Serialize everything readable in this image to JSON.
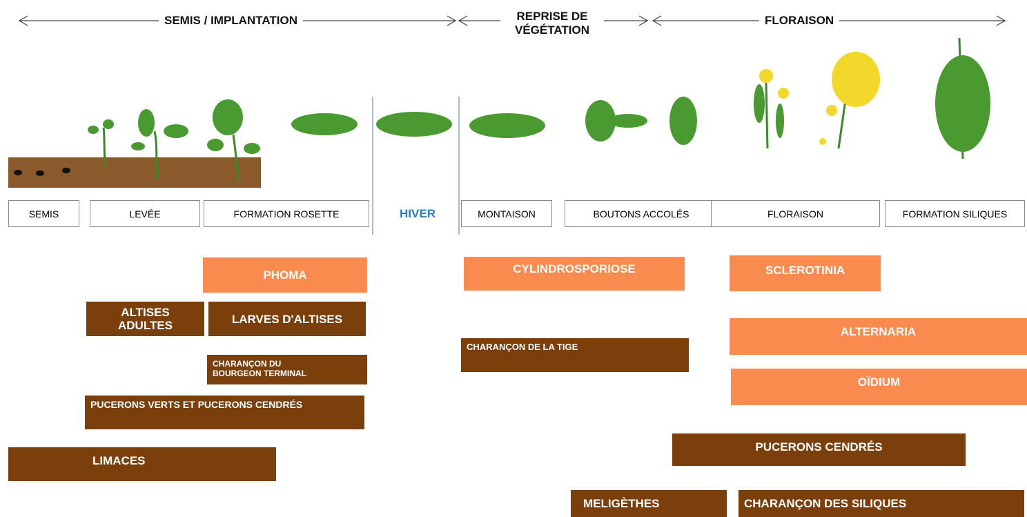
{
  "phases": [
    {
      "label": "SEMIS / IMPLANTATION"
    },
    {
      "label": "REPRISE DE VÉGÉTATION"
    },
    {
      "label": "FLORAISON"
    }
  ],
  "stages": [
    {
      "label": "SEMIS"
    },
    {
      "label": "LEVÉE"
    },
    {
      "label": "FORMATION ROSETTE"
    },
    {
      "label": "HIVER"
    },
    {
      "label": "MONTAISON"
    },
    {
      "label": "BOUTONS ACCOLÉS"
    },
    {
      "label": "FLORAISON"
    },
    {
      "label": "FORMATION SILIQUES"
    }
  ],
  "threats": [
    {
      "label": "PHOMA"
    },
    {
      "label": "CYLINDROSPORIOSE"
    },
    {
      "label": "SCLEROTINIA"
    },
    {
      "label": "ALTISES ADULTES"
    },
    {
      "label": "LARVES D'ALTISES"
    },
    {
      "label": "ALTERNARIA"
    },
    {
      "label": "CHARANÇON DE LA TIGE"
    },
    {
      "label": "CHARANÇON DU BOURGEON TERMINAL"
    },
    {
      "label": "OÏDIUM"
    },
    {
      "label": "PUCERONS VERTS ET PUCERONS CENDRÉS"
    },
    {
      "label": "PUCERONS CENDRÉS"
    },
    {
      "label": "LIMACES"
    },
    {
      "label": "MELIGÈTHES"
    },
    {
      "label": "CHARANÇON DES SILIQUES"
    }
  ]
}
